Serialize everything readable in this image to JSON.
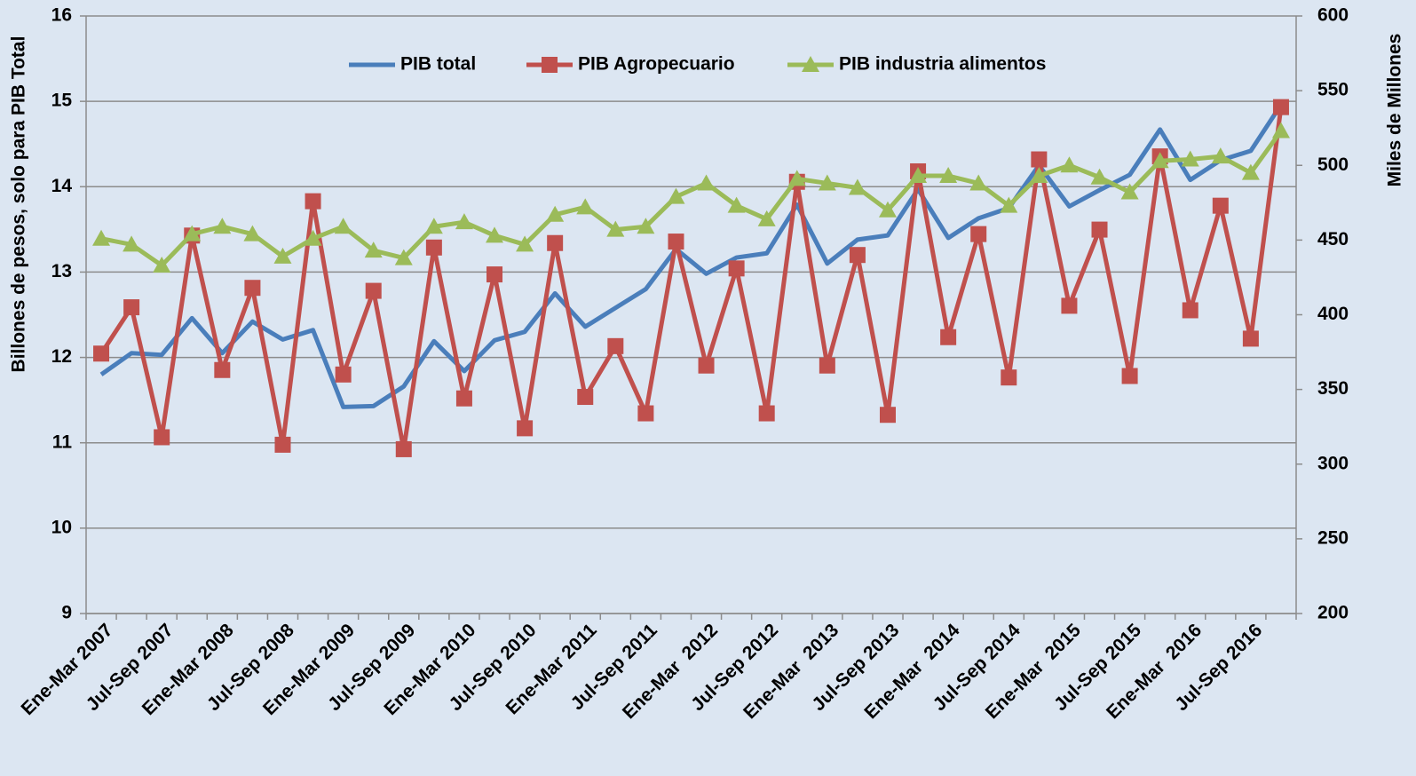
{
  "chart_data": {
    "type": "line",
    "y_label": "Billones de pesos, solo para PIB Total",
    "y2_label": "Miles de Millones",
    "categories": [
      "Ene-Mar 2007",
      null,
      "Jul-Sep 2007",
      null,
      "Ene-Mar 2008",
      null,
      "Jul-Sep 2008",
      null,
      "Ene-Mar 2009",
      null,
      "Jul-Sep 2009",
      null,
      "Ene-Mar 2010",
      null,
      "Jul-Sep 2010",
      null,
      "Ene-Mar 2011",
      null,
      "Jul-Sep 2011",
      null,
      "Ene-Mar  2012",
      null,
      "Jul-Sep 2012",
      null,
      "Ene-Mar  2013",
      null,
      "Jul-Sep 2013",
      null,
      "Ene-Mar  2014",
      null,
      "Jul-Sep 2014",
      null,
      "Ene-Mar  2015",
      null,
      "Jul-Sep 2015",
      null,
      "Ene-Mar  2016",
      null,
      "Jul-Sep 2016",
      null
    ],
    "series": [
      {
        "name": "PIB total",
        "color": "#4a7ebb",
        "marker": "none",
        "values": [
          11.8,
          12.05,
          12.03,
          12.46,
          12.05,
          12.42,
          12.21,
          12.32,
          11.42,
          11.43,
          11.66,
          12.19,
          11.84,
          12.2,
          12.3,
          12.75,
          12.36,
          12.58,
          12.8,
          13.27,
          12.98,
          13.17,
          13.22,
          13.79,
          13.1,
          13.38,
          13.43,
          13.97,
          13.4,
          13.63,
          13.75,
          14.25,
          13.77,
          13.96,
          14.14,
          14.67,
          14.08,
          14.31,
          14.42,
          14.96
        ]
      },
      {
        "name": "PIB Agropecuario",
        "color": "#c0504d",
        "marker": "square",
        "axis": "y2",
        "values": [
          374,
          405,
          318,
          453,
          363,
          418,
          313,
          476,
          360,
          416,
          310,
          445,
          344,
          427,
          324,
          448,
          345,
          379,
          334,
          449,
          366,
          431,
          334,
          489,
          366,
          440,
          333,
          496,
          385,
          454,
          358,
          504,
          406,
          457,
          359,
          506,
          403,
          473,
          384,
          539
        ]
      },
      {
        "name": "PIB industria alimentos",
        "color": "#9bbb59",
        "marker": "triangle",
        "axis": "y2",
        "values": [
          451,
          447,
          433,
          454,
          459,
          454,
          439,
          451,
          459,
          443,
          438,
          459,
          462,
          453,
          447,
          467,
          472,
          457,
          459,
          479,
          488,
          473,
          464,
          491,
          488,
          485,
          470,
          493,
          493,
          488,
          473,
          493,
          500,
          492,
          482,
          503,
          504,
          506,
          495,
          523
        ]
      }
    ],
    "ylim": [
      9,
      16
    ],
    "yticks": [
      9,
      10,
      11,
      12,
      13,
      14,
      15,
      16
    ],
    "y2lim": [
      200,
      600
    ],
    "y2ticks": [
      200,
      250,
      300,
      350,
      400,
      450,
      500,
      550,
      600
    ],
    "grid": true,
    "legend": "top"
  }
}
